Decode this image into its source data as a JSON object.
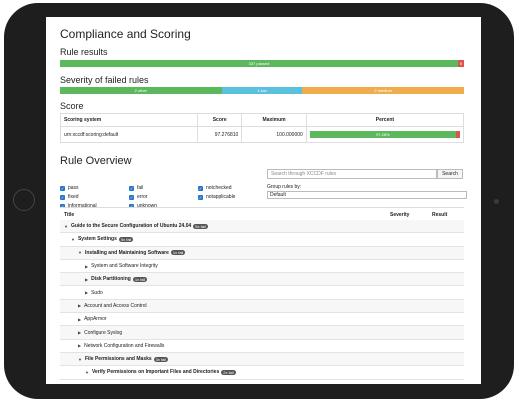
{
  "page": {
    "title": "Compliance and Scoring",
    "rule_results": {
      "heading": "Rule results",
      "passed_label": "337 passed",
      "failed_label": "5",
      "passed_pct": 98.5,
      "failed_pct": 1.5,
      "colors": {
        "passed": "#5cb85c",
        "failed": "#d9534f"
      }
    },
    "severity": {
      "heading": "Severity of failed rules",
      "segments": [
        {
          "label": "2 other",
          "pct": 40,
          "color": "#5cb85c"
        },
        {
          "label": "1 low",
          "pct": 20,
          "color": "#5bc0de"
        },
        {
          "label": "2 medium",
          "pct": 40,
          "color": "#f0ad4e"
        }
      ]
    },
    "score": {
      "heading": "Score",
      "columns": [
        "Scoring system",
        "Score",
        "Maximum",
        "Percent"
      ],
      "row": {
        "system": "urn:xccdf:scoring:default",
        "score": "97.276810",
        "maximum": "100.000000",
        "percent_label": "97.28%",
        "percent_value": 97.28
      }
    },
    "overview": {
      "heading": "Rule Overview",
      "filters": [
        {
          "label": "pass",
          "checked": true
        },
        {
          "label": "fixed",
          "checked": true
        },
        {
          "label": "informational",
          "checked": true
        },
        {
          "label": "fail",
          "checked": true
        },
        {
          "label": "error",
          "checked": true
        },
        {
          "label": "unknown",
          "checked": true
        },
        {
          "label": "notchecked",
          "checked": true
        },
        {
          "label": "notapplicable",
          "checked": true
        }
      ],
      "search_placeholder": "Search through XCCDF rules",
      "search_button": "Search",
      "group_label": "Group rules by:",
      "group_value": "Default",
      "tree_columns": {
        "title": "Title",
        "severity": "Severity",
        "result": "Result"
      },
      "tree": [
        {
          "label": "Guide to the Secure Configuration of Ubuntu 24.04",
          "badge": "5x fail",
          "level": 0,
          "bold": true,
          "expanded": true
        },
        {
          "label": "System Settings",
          "badge": "5x fail",
          "level": 1,
          "bold": true,
          "expanded": true
        },
        {
          "label": "Installing and Maintaining Software",
          "badge": "1x fail",
          "level": 2,
          "bold": true,
          "expanded": true
        },
        {
          "label": "System and Software Integrity",
          "badge": "",
          "level": 3,
          "bold": false,
          "expanded": false
        },
        {
          "label": "Disk Partitioning",
          "badge": "1x fail",
          "level": 3,
          "bold": true,
          "expanded": false
        },
        {
          "label": "Sudo",
          "badge": "",
          "level": 3,
          "bold": false,
          "expanded": false
        },
        {
          "label": "Account and Access Control",
          "badge": "",
          "level": 2,
          "bold": false,
          "expanded": false
        },
        {
          "label": "AppArmor",
          "badge": "",
          "level": 2,
          "bold": false,
          "expanded": false
        },
        {
          "label": "Configure Syslog",
          "badge": "",
          "level": 2,
          "bold": false,
          "expanded": false
        },
        {
          "label": "Network Configuration and Firewalls",
          "badge": "",
          "level": 2,
          "bold": false,
          "expanded": false
        },
        {
          "label": "File Permissions and Masks",
          "badge": "3x fail",
          "level": 2,
          "bold": true,
          "expanded": true
        },
        {
          "label": "Verify Permissions on Important Files and Directories",
          "badge": "2x fail",
          "level": 3,
          "bold": true,
          "expanded": true
        }
      ]
    }
  }
}
